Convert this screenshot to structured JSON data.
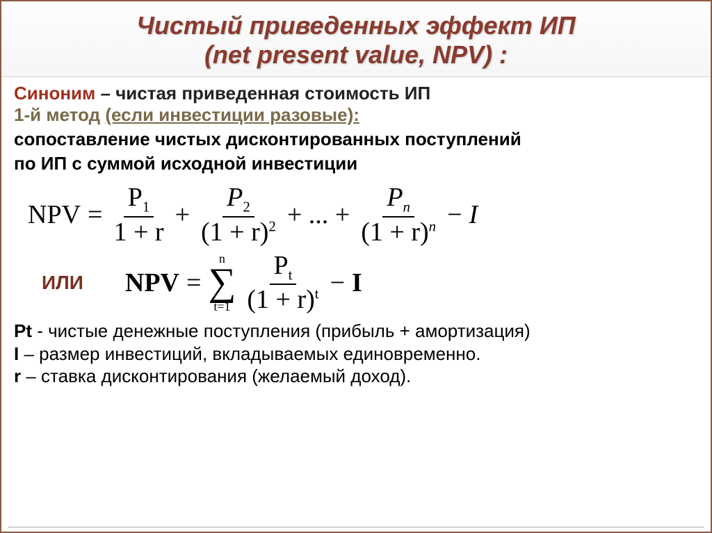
{
  "title": {
    "line1": "Чистый приведенных эффект ИП",
    "line2": "(net present value, NPV) :",
    "color": "#8a3a2e",
    "fontsize": 36
  },
  "synonym": {
    "label": "Синоним",
    "dash": " – ",
    "text": "чистая приведенная стоимость ИП",
    "label_color": "#a03020"
  },
  "method": {
    "label": "1-й метод ",
    "rest": "(если инвестиции разовые):",
    "color": "#7a6a4a"
  },
  "desc": {
    "line1": "сопоставление чистых дисконтированных поступлений",
    "line2": "по ИП с суммой исходной инвестиции"
  },
  "formula1": {
    "lhs": "NPV",
    "eq": "=",
    "terms": [
      {
        "num_var": "P",
        "num_sub": "1",
        "den": "1 + r",
        "den_exp": ""
      },
      {
        "num_var": "P",
        "num_sub": "2",
        "den": "(1 + r)",
        "den_exp": "2"
      },
      {
        "num_var": "P",
        "num_sub": "n",
        "den": "(1 + r)",
        "den_exp": "n"
      }
    ],
    "plus": "+",
    "dots": "+ ... +",
    "minus": "−",
    "tail": "I"
  },
  "or_label": "ИЛИ",
  "formula2": {
    "lhs": "NPV",
    "eq": "=",
    "sum_top": "n",
    "sum_bottom": "t=1",
    "num_var": "P",
    "num_sub": "t",
    "den": "(1 + r)",
    "den_exp": "t",
    "minus": "−",
    "tail": "I"
  },
  "legend": {
    "pt_sym": "Pt",
    "pt_text": " - чистые денежные поступления (прибыль + амортизация)",
    "i_sym": "I",
    "i_text": " – размер инвестиций, вкладываемых единовременно.",
    "r_sym": "r",
    "r_text": " – ставка дисконтирования (желаемый доход)."
  },
  "colors": {
    "title": "#8a3a2e",
    "method": "#7a6a4a",
    "or": "#7a3020",
    "text": "#000000",
    "border": "#8a5a44"
  }
}
